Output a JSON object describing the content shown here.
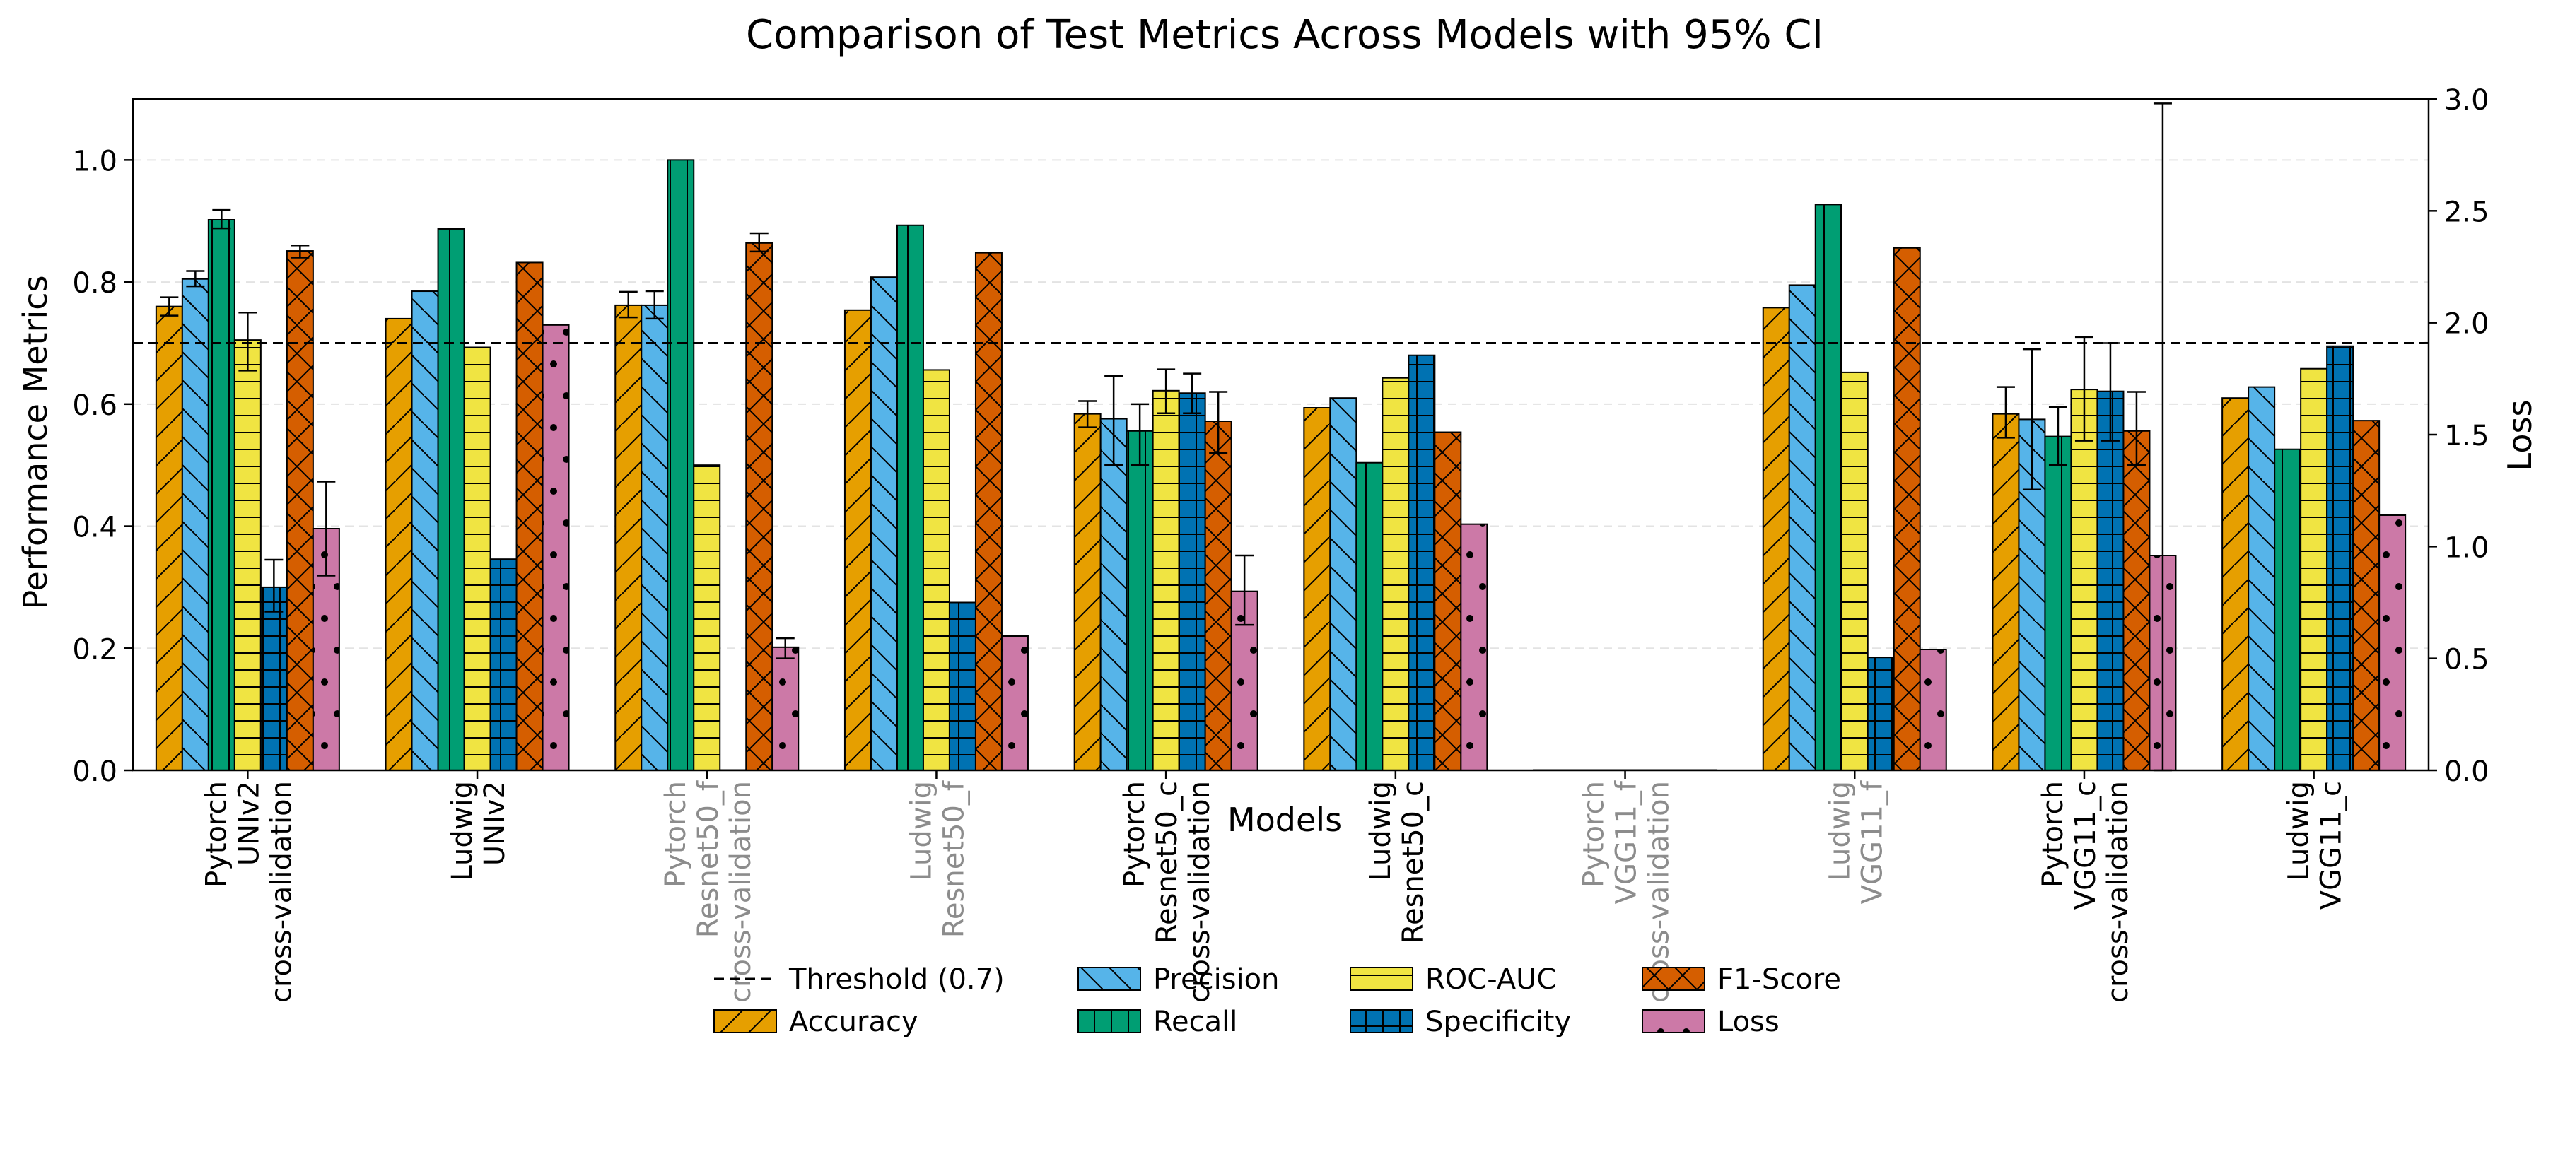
{
  "chart_data": {
    "type": "bar",
    "title": "Comparison of Test Metrics Across Models with 95% CI",
    "xlabel": "Models",
    "ylabel": "Performance Metrics",
    "ylabel_right": "Loss",
    "ylim": [
      0,
      1.1
    ],
    "ylim_right": [
      0,
      3.0
    ],
    "yticks": [
      "0.0",
      "0.2",
      "0.4",
      "0.6",
      "0.8",
      "1.0"
    ],
    "yticks_right": [
      "0.0",
      "0.5",
      "1.0",
      "1.5",
      "2.0",
      "2.5",
      "3.0"
    ],
    "grid": "horizontal dashed",
    "legend_position": "bottom-center",
    "threshold": {
      "label": "Threshold (0.7)",
      "value": 0.7
    },
    "categories": [
      {
        "lines": [
          "Pytorch",
          "UNIv2",
          "cross-validation"
        ],
        "muted": false
      },
      {
        "lines": [
          "Ludwig",
          "UNIv2"
        ],
        "muted": false
      },
      {
        "lines": [
          "Pytorch",
          "Resnet50_f",
          "cross-validation"
        ],
        "muted": true
      },
      {
        "lines": [
          "Ludwig",
          "Resnet50_f"
        ],
        "muted": true
      },
      {
        "lines": [
          "Pytorch",
          "Resnet50_c",
          "cross-validation"
        ],
        "muted": false
      },
      {
        "lines": [
          "Ludwig",
          "Resnet50_c"
        ],
        "muted": false
      },
      {
        "lines": [
          "Pytorch",
          "VGG11_f",
          "cross-validation"
        ],
        "muted": true
      },
      {
        "lines": [
          "Ludwig",
          "VGG11_f"
        ],
        "muted": true
      },
      {
        "lines": [
          "Pytorch",
          "VGG11_c",
          "cross-validation"
        ],
        "muted": false
      },
      {
        "lines": [
          "Ludwig",
          "VGG11_c"
        ],
        "muted": false
      }
    ],
    "series": [
      {
        "name": "Accuracy",
        "color": "#E69F00",
        "hatch": "slash",
        "axis": "left",
        "values": [
          0.76,
          0.74,
          0.762,
          0.754,
          0.584,
          0.594,
          0,
          0.758,
          0.584,
          0.61
        ],
        "ci": [
          [
            0.745,
            0.775
          ],
          null,
          [
            0.742,
            0.784
          ],
          null,
          [
            0.562,
            0.605
          ],
          null,
          null,
          null,
          [
            0.545,
            0.628
          ],
          null
        ]
      },
      {
        "name": "Precision",
        "color": "#56B4E9",
        "hatch": "backslash",
        "axis": "left",
        "values": [
          0.805,
          0.785,
          0.762,
          0.808,
          0.576,
          0.61,
          0,
          0.795,
          0.575,
          0.628
        ],
        "ci": [
          [
            0.793,
            0.818
          ],
          null,
          [
            0.74,
            0.785
          ],
          null,
          [
            0.5,
            0.646
          ],
          null,
          null,
          null,
          [
            0.46,
            0.69
          ],
          null
        ]
      },
      {
        "name": "Recall",
        "color": "#009E73",
        "hatch": "vertical",
        "axis": "left",
        "values": [
          0.902,
          0.887,
          1.0,
          0.893,
          0.556,
          0.504,
          0,
          0.927,
          0.547,
          0.526
        ],
        "ci": [
          [
            0.888,
            0.918
          ],
          null,
          null,
          null,
          [
            0.5,
            0.6
          ],
          null,
          null,
          null,
          [
            0.5,
            0.595
          ],
          null
        ]
      },
      {
        "name": "ROC-AUC",
        "color": "#F0E442",
        "hatch": "horizontal",
        "axis": "left",
        "values": [
          0.705,
          0.693,
          0.5,
          0.656,
          0.622,
          0.643,
          0,
          0.652,
          0.624,
          0.658
        ],
        "ci": [
          [
            0.655,
            0.75
          ],
          null,
          null,
          null,
          [
            0.585,
            0.657
          ],
          null,
          null,
          null,
          [
            0.54,
            0.71
          ],
          null
        ]
      },
      {
        "name": "Specificity",
        "color": "#0072B2",
        "hatch": "grid",
        "axis": "left",
        "values": [
          0.3,
          0.346,
          0,
          0.275,
          0.618,
          0.68,
          0,
          0.185,
          0.621,
          0.695
        ],
        "ci": [
          [
            0.26,
            0.345
          ],
          null,
          null,
          null,
          [
            0.585,
            0.65
          ],
          null,
          null,
          null,
          [
            0.54,
            0.7
          ],
          null
        ]
      },
      {
        "name": "F1-Score",
        "color": "#D55E00",
        "hatch": "cross",
        "axis": "left",
        "values": [
          0.851,
          0.832,
          0.864,
          0.848,
          0.572,
          0.554,
          0,
          0.856,
          0.556,
          0.573
        ],
        "ci": [
          [
            0.84,
            0.86
          ],
          null,
          [
            0.85,
            0.88
          ],
          null,
          [
            0.52,
            0.62
          ],
          null,
          null,
          null,
          [
            0.5,
            0.62
          ],
          null
        ]
      },
      {
        "name": "Loss",
        "color": "#CC79A7",
        "hatch": "dots",
        "axis": "right",
        "values": [
          1.08,
          1.99,
          0.55,
          0.6,
          0.8,
          1.1,
          0,
          0.54,
          0.96,
          1.14
        ],
        "ci": [
          [
            0.87,
            1.29
          ],
          null,
          [
            0.5,
            0.59
          ],
          null,
          [
            0.65,
            0.96
          ],
          null,
          null,
          null,
          [
            0.0,
            2.98
          ],
          null
        ]
      }
    ]
  }
}
